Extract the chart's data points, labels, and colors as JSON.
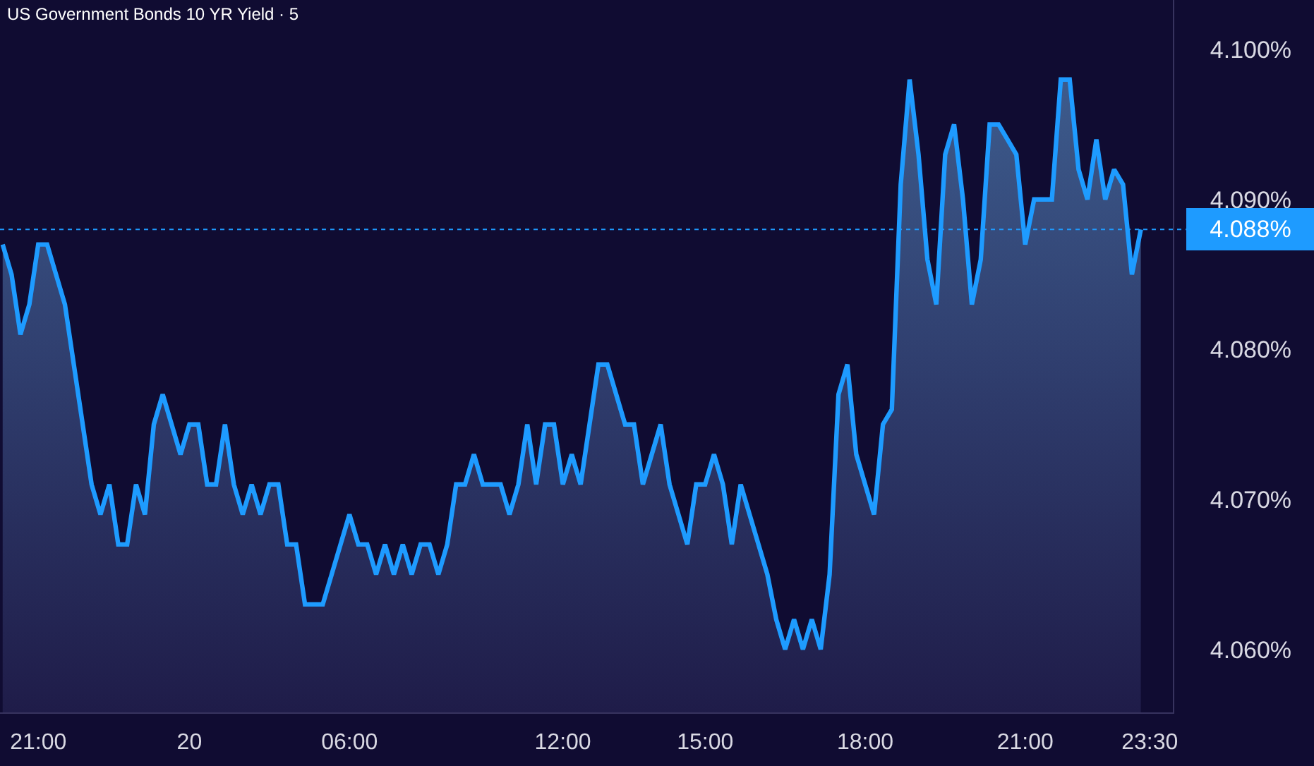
{
  "chart_data": {
    "type": "area",
    "title": "US Government Bonds 10 YR Yield · 5",
    "categories": [
      null,
      null,
      null,
      null,
      "21:00",
      null,
      null,
      null,
      null,
      null,
      null,
      null,
      null,
      null,
      null,
      null,
      null,
      null,
      null,
      null,
      null,
      "20",
      null,
      null,
      null,
      null,
      null,
      null,
      null,
      null,
      null,
      null,
      null,
      null,
      null,
      null,
      null,
      null,
      null,
      "06:00",
      null,
      null,
      null,
      null,
      null,
      null,
      null,
      null,
      null,
      null,
      null,
      null,
      null,
      null,
      null,
      null,
      null,
      null,
      null,
      null,
      null,
      null,
      null,
      "12:00",
      null,
      null,
      null,
      null,
      null,
      null,
      null,
      null,
      null,
      null,
      null,
      null,
      null,
      null,
      null,
      "15:00",
      null,
      null,
      null,
      null,
      null,
      null,
      null,
      null,
      null,
      null,
      null,
      null,
      null,
      null,
      null,
      null,
      null,
      "18:00",
      null,
      null,
      null,
      null,
      null,
      null,
      null,
      null,
      null,
      null,
      null,
      null,
      null,
      null,
      null,
      null,
      null,
      "21:00",
      null,
      null,
      null,
      null,
      null,
      null,
      null,
      null,
      null,
      null,
      null,
      null,
      null,
      "23:30"
    ],
    "series": [
      {
        "color": "#1e9bff",
        "values": [
          4.087,
          4.085,
          4.081,
          4.083,
          4.087,
          4.087,
          4.085,
          4.083,
          4.079,
          4.075,
          4.071,
          4.069,
          4.071,
          4.067,
          4.067,
          4.071,
          4.069,
          4.075,
          4.077,
          4.075,
          4.073,
          4.075,
          4.075,
          4.071,
          4.071,
          4.075,
          4.071,
          4.069,
          4.071,
          4.069,
          4.071,
          4.071,
          4.067,
          4.067,
          4.063,
          4.063,
          4.063,
          4.065,
          4.067,
          4.069,
          4.067,
          4.067,
          4.065,
          4.067,
          4.065,
          4.067,
          4.065,
          4.067,
          4.067,
          4.065,
          4.067,
          4.071,
          4.071,
          4.073,
          4.071,
          4.071,
          4.071,
          4.069,
          4.071,
          4.075,
          4.071,
          4.075,
          4.075,
          4.071,
          4.073,
          4.071,
          4.075,
          4.079,
          4.079,
          4.077,
          4.075,
          4.075,
          4.071,
          4.073,
          4.075,
          4.071,
          4.069,
          4.067,
          4.071,
          4.071,
          4.073,
          4.071,
          4.067,
          4.071,
          4.069,
          4.067,
          4.065,
          4.062,
          4.06,
          4.062,
          4.06,
          4.062,
          4.06,
          4.065,
          4.077,
          4.079,
          4.073,
          4.071,
          4.069,
          4.075,
          4.076,
          4.091,
          4.098,
          4.093,
          4.086,
          4.083,
          4.093,
          4.095,
          4.09,
          4.083,
          4.086,
          4.095,
          4.095,
          4.094,
          4.093,
          4.087,
          4.09,
          4.09,
          4.09,
          4.098,
          4.098,
          4.092,
          4.09,
          4.094,
          4.09,
          4.092,
          4.091,
          4.085,
          4.088,
          null
        ]
      }
    ],
    "ylim": [
      4.0558,
      4.1033
    ],
    "yticks": [
      {
        "value": 4.06,
        "label": "4.060%"
      },
      {
        "value": 4.07,
        "label": "4.070%"
      },
      {
        "value": 4.08,
        "label": "4.080%"
      },
      {
        "value": 4.09,
        "label": "4.090%"
      },
      {
        "value": 4.1,
        "label": "4.100%"
      }
    ],
    "ref_lines": [
      {
        "axis": "y",
        "value": 4.088,
        "label": "4.088%",
        "color": "#1e9bff",
        "line_style": "dotted"
      }
    ]
  }
}
